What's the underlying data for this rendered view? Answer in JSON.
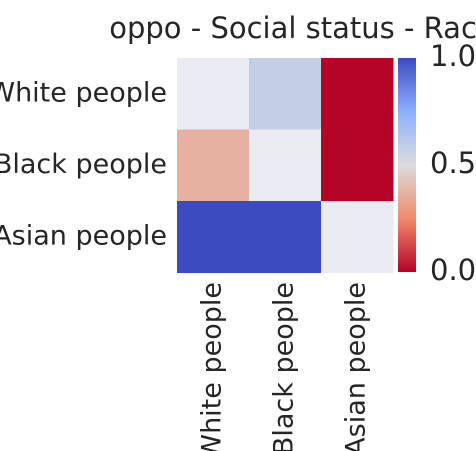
{
  "chart_data": {
    "type": "heatmap",
    "title": "oppo - Social status - Race",
    "row_labels": [
      "White people",
      "Black people",
      "Asian people"
    ],
    "col_labels": [
      "White people",
      "Black people",
      "Asian people"
    ],
    "values": [
      [
        null,
        0.58,
        0.0
      ],
      [
        0.37,
        null,
        0.0
      ],
      [
        1.0,
        1.0,
        null
      ]
    ],
    "colorbar": {
      "vmin": 0.0,
      "vmax": 1.0,
      "ticks": [
        "0.0",
        "0.5",
        "1.0"
      ]
    },
    "colormap": "coolwarm_r",
    "missing_color": "#eaeaf2",
    "xlabel": "",
    "ylabel": ""
  }
}
